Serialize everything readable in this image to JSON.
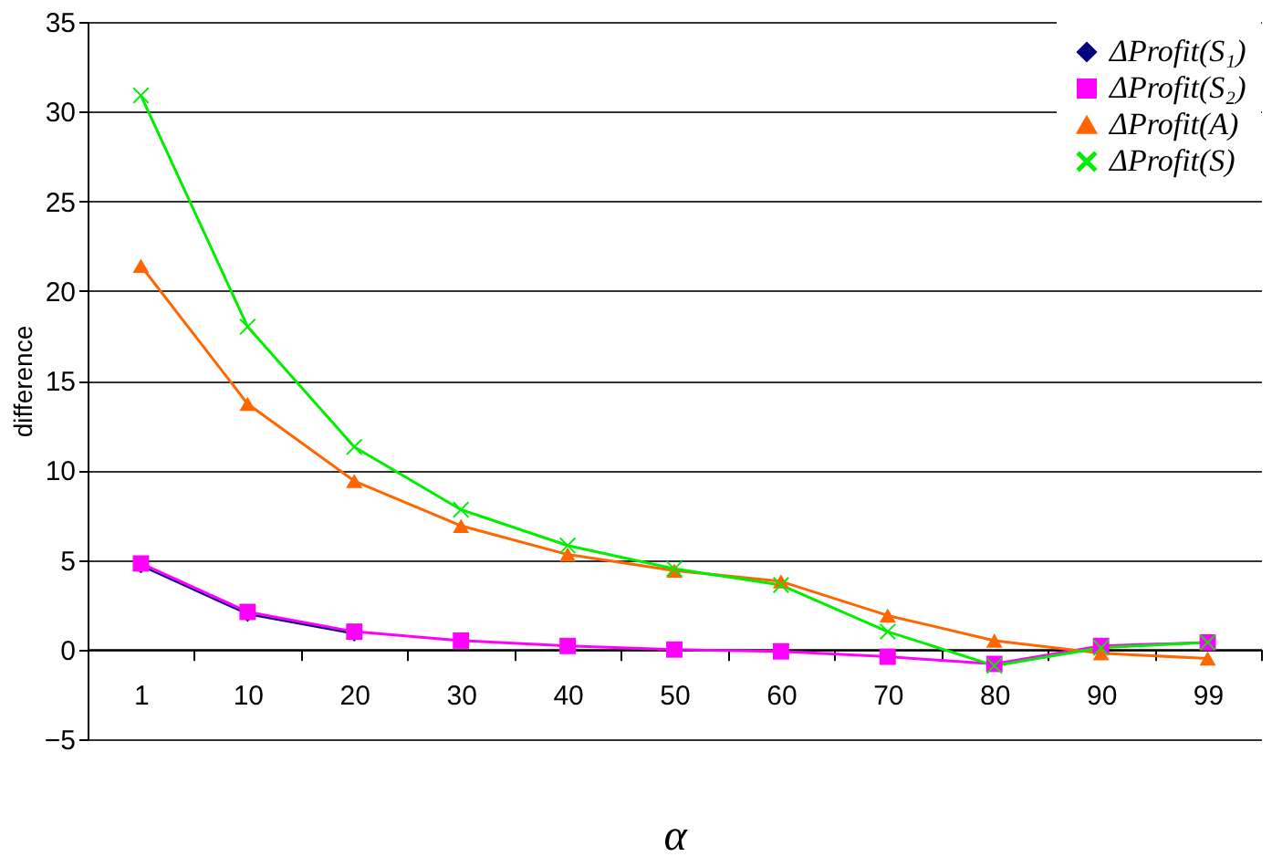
{
  "chart_data": {
    "type": "line",
    "xlabel": "α",
    "ylabel": "difference",
    "categories": [
      "1",
      "10",
      "20",
      "30",
      "40",
      "50",
      "60",
      "70",
      "80",
      "90",
      "99"
    ],
    "ylim": [
      -5,
      35
    ],
    "yticks": [
      -5,
      0,
      5,
      10,
      15,
      20,
      25,
      30,
      35
    ],
    "grid": "y",
    "legend": "top right",
    "series": [
      {
        "name": "ΔProfit(S₁)",
        "color": "#000080",
        "marker": "diamond",
        "values": [
          4.7,
          2.0,
          0.9,
          null,
          null,
          null,
          null,
          null,
          null,
          null,
          null
        ]
      },
      {
        "name": "ΔProfit(S₂)",
        "color": "#ff00ff",
        "marker": "square",
        "values": [
          4.8,
          2.1,
          1.0,
          0.5,
          0.2,
          0.0,
          -0.1,
          -0.4,
          -0.8,
          0.2,
          0.4
        ]
      },
      {
        "name": "ΔProfit(A)",
        "color": "#ff6600",
        "marker": "triangle",
        "values": [
          21.4,
          13.7,
          9.4,
          6.9,
          5.3,
          4.4,
          3.8,
          1.9,
          0.5,
          -0.2,
          -0.5
        ]
      },
      {
        "name": "ΔProfit(S)",
        "color": "#00ee00",
        "marker": "cross",
        "values": [
          30.9,
          18.0,
          11.3,
          7.8,
          5.8,
          4.5,
          3.6,
          1.0,
          -0.9,
          0.1,
          0.4
        ]
      }
    ]
  }
}
